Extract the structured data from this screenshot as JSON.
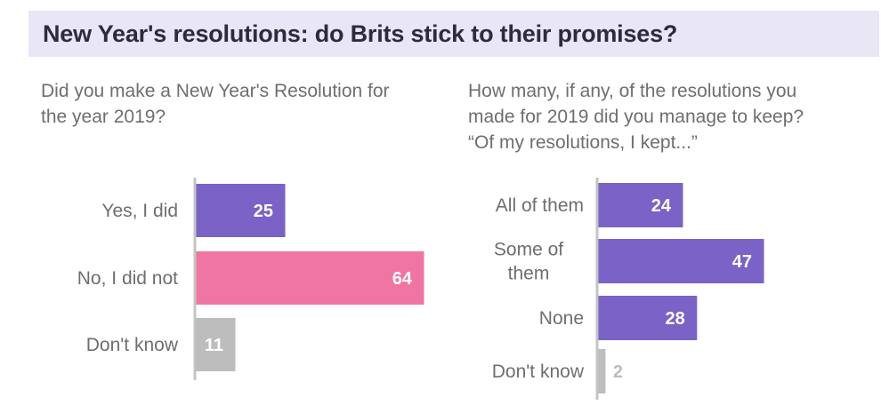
{
  "header": {
    "title": "New Year's resolutions: do Brits stick to their promises?"
  },
  "left": {
    "question_lines": [
      "Did you make a New Year's Resolution for",
      "the year 2019?"
    ]
  },
  "right": {
    "question_lines": [
      "How many, if any, of the resolutions you",
      "made for 2019 did you manage to keep?",
      "“Of my resolutions, I kept...”"
    ]
  },
  "colors": {
    "purple": "#7a62c6",
    "pink": "#f075a3",
    "gray": "#bdbdbd",
    "axis": "#c4c4c4"
  },
  "chart_data": [
    {
      "type": "bar",
      "orientation": "horizontal",
      "categories": [
        "Yes, I did",
        "No, I did not",
        "Don't know"
      ],
      "values": [
        25,
        64,
        11
      ],
      "bar_colors": [
        "#7a62c6",
        "#f075a3",
        "#bdbdbd"
      ],
      "xlim": [
        0,
        64
      ]
    },
    {
      "type": "bar",
      "orientation": "horizontal",
      "categories": [
        "All of them",
        "Some of them",
        "None",
        "Don't know"
      ],
      "values": [
        24,
        47,
        28,
        2
      ],
      "bar_colors": [
        "#7a62c6",
        "#7a62c6",
        "#7a62c6",
        "#bdbdbd"
      ],
      "xlim": [
        0,
        47
      ]
    }
  ]
}
